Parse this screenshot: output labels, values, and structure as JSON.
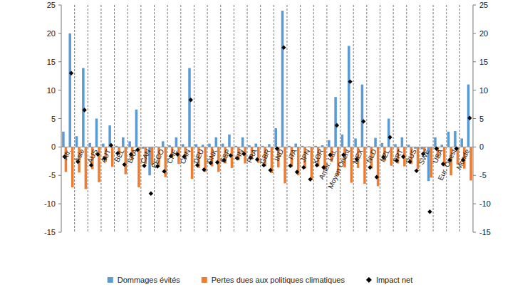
{
  "chart_data": {
    "type": "bar",
    "categories": [
      null,
      "Afr.",
      null,
      "Asie",
      null,
      "AUS",
      null,
      "AUT",
      null,
      "BEL",
      null,
      "BRA",
      null,
      "CAN",
      null,
      "PECO",
      null,
      "CHE",
      null,
      "CHN",
      null,
      "DEU",
      null,
      "DNK",
      null,
      "ESP",
      null,
      "FIN",
      null,
      "FRA",
      null,
      "GBR",
      null,
      "IND",
      null,
      "ITA",
      null,
      "JPN",
      null,
      "KOR",
      null,
      "Amér. Lat.",
      null,
      "Moyen Orient",
      null,
      "MEX",
      null,
      "NLD",
      null,
      "NZL",
      null,
      "PRT",
      null,
      "RUS",
      null,
      "SWE",
      null,
      "USA",
      null,
      "Eur. Ouest",
      null,
      "Monde"
    ],
    "series": [
      {
        "name": "Dommages évités",
        "color": "#5b9bd5",
        "type": "bar",
        "values": [
          2.7,
          20,
          1.9,
          13.9,
          0.7,
          5,
          0.6,
          3.8,
          0.2,
          1.7,
          1.0,
          6.6,
          -0.3,
          -5.0,
          0.1,
          1.0,
          0.3,
          1.7,
          0.5,
          13.9,
          0.5,
          0.4,
          0.6,
          1.7,
          0.6,
          2.2,
          0.2,
          1.7,
          0.3,
          0.6,
          0.2,
          0.5,
          3.3,
          24,
          0.2,
          0.6,
          0.2,
          0.1,
          0.2,
          0.3,
          1.2,
          8.8,
          2.2,
          17.8,
          1.5,
          11,
          0.2,
          1.6,
          0.7,
          5,
          0.5,
          1.7,
          0.4,
          -0.3,
          -0.4,
          -6.0,
          1.7,
          0.4,
          2.7,
          2.8,
          1.5,
          11
        ]
      },
      {
        "name": "Pertes dues aux politiques climatiques",
        "color": "#ed7d31",
        "type": "bar",
        "values": [
          -4.4,
          -7.1,
          -4.5,
          -7.4,
          -3.9,
          -6.2,
          -2.6,
          -3.5,
          -1.3,
          -4.8,
          -2.3,
          -7.1,
          -3.0,
          -3.2,
          -3.5,
          -5.3,
          -1.9,
          -3.0,
          -2.2,
          -5.6,
          -3.7,
          -4.4,
          -3.4,
          -4.4,
          -2.9,
          -3.7,
          -2.2,
          -2.9,
          -2.2,
          -2.8,
          -3.4,
          -4.6,
          -3.6,
          -6.4,
          -3.5,
          -5.0,
          -3.8,
          -5.8,
          -3.4,
          -3.9,
          -2.6,
          -5.0,
          -3.6,
          -6.3,
          -3.7,
          -6.5,
          -3.8,
          -6.9,
          -2.5,
          -3.3,
          -2.9,
          -3.4,
          -3.0,
          -3.9,
          -0.8,
          -5.4,
          -2.0,
          -3.4,
          -5.0,
          -3.1,
          -3.8,
          -5.9
        ]
      },
      {
        "name": "Impact net",
        "color": "#000000",
        "type": "scatter",
        "marker": "diamond",
        "values": [
          -1.7,
          13,
          -2.6,
          6.5,
          -3.2,
          -1.3,
          -2.0,
          0.3,
          -1.1,
          -3.1,
          -1.3,
          -0.5,
          -3.3,
          -8.2,
          -3.4,
          -4.3,
          -1.6,
          -1.3,
          -1.7,
          8.3,
          -3.2,
          -4.0,
          -2.8,
          -2.7,
          -2.3,
          -1.5,
          -2.0,
          -1.2,
          -1.9,
          -2.2,
          -3.2,
          -4.1,
          -0.3,
          17.5,
          -3.3,
          -4.4,
          -3.6,
          -5.7,
          -3.2,
          -3.6,
          -1.4,
          3.8,
          -1.4,
          11.5,
          -2.2,
          4.5,
          -3.6,
          -5.3,
          -1.8,
          1.7,
          -2.4,
          -1.7,
          -2.6,
          -4.2,
          -1.2,
          -11.4,
          -0.3,
          -3.0,
          -2.3,
          -0.3,
          -2.3,
          5.1
        ]
      }
    ],
    "ylim": [
      -15,
      25
    ],
    "yticks": [
      -15,
      -10,
      -5,
      0,
      5,
      10,
      15,
      20,
      25
    ],
    "y2lim": [
      -15,
      25
    ],
    "y2ticks": [
      -15,
      -10,
      -5,
      0,
      5,
      10,
      15,
      20,
      25
    ],
    "grid": false,
    "legend": "bottom"
  }
}
